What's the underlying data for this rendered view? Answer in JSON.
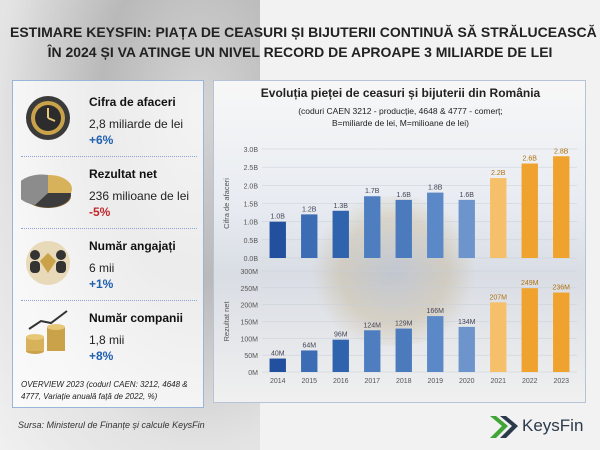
{
  "headline": {
    "line1": "ESTIMARE KEYSFIN: PIAȚA DE CEASURI ȘI BIJUTERII CONTINUĂ SĂ STRĂLUCEASCĂ",
    "line2": "ÎN 2024 ȘI VA ATINGE UN NIVEL RECORD DE APROAPE 3 MILIARDE DE LEI"
  },
  "kpis": [
    {
      "label": "Cifra de afaceri",
      "value": "2,8 miliarde de lei",
      "change": "+6%",
      "change_color": "#1f5fb0",
      "icon": "gold-watch-icon"
    },
    {
      "label": "Rezultat net",
      "value": "236 milioane de lei",
      "change": "-5%",
      "change_color": "#c0282d",
      "icon": "pie-chart-icon"
    },
    {
      "label": "Număr angajați",
      "value": "6 mii",
      "change": "+1%",
      "change_color": "#1f5fb0",
      "icon": "people-diamond-icon"
    },
    {
      "label": "Număr companii",
      "value": "1,8 mii",
      "change": "+8%",
      "change_color": "#1f5fb0",
      "icon": "coins-chart-icon"
    }
  ],
  "overview": "OVERVIEW 2023 (codurI CAEN: 3212, 4648 & 4777, Variație anuală față de 2022, %)",
  "source": "Sursa: Ministerul de Finanțe și calcule KeysFin",
  "brand": {
    "name": "KeysFin",
    "color": "#2b3a4a",
    "accent": "#3fa535"
  },
  "chart_data": {
    "title": "Evoluția pieței de ceasuri și bijuterii din România",
    "subtitle_line1": "(coduri CAEN 3212 - producție, 4648 & 4777 - comerț;",
    "subtitle_line2": "B=miliarde de lei, M=milioane de lei)",
    "categories": [
      "2014",
      "2015",
      "2016",
      "2017",
      "2018",
      "2019",
      "2020",
      "2021",
      "2022",
      "2023"
    ],
    "charts": [
      {
        "type": "bar",
        "ylabel": "Cifra de afaceri",
        "ylim": [
          0,
          3.0
        ],
        "yticks": [
          "0.0B",
          "0.5B",
          "1.0B",
          "1.5B",
          "2.0B",
          "2.5B",
          "3.0B"
        ],
        "values": [
          1.0,
          1.2,
          1.3,
          1.7,
          1.6,
          1.8,
          1.6,
          2.2,
          2.6,
          2.8
        ],
        "labels": [
          "1.0B",
          "1.2B",
          "1.3B",
          "1.7B",
          "1.6B",
          "1.8B",
          "1.6B",
          "2.2B",
          "2.6B",
          "2.8B"
        ]
      },
      {
        "type": "bar",
        "ylabel": "Rezultat net",
        "ylim": [
          0,
          300
        ],
        "yticks": [
          "0M",
          "50M",
          "100M",
          "150M",
          "200M",
          "250M",
          "300M"
        ],
        "values": [
          40,
          64,
          96,
          124,
          129,
          166,
          134,
          207,
          249,
          236
        ],
        "labels": [
          "40M",
          "64M",
          "96M",
          "124M",
          "129M",
          "166M",
          "134M",
          "207M",
          "249M",
          "236M"
        ]
      }
    ],
    "colors": {
      "blue_dark": "#2d5aa5",
      "blue_light": "#5c86c4",
      "orange": "#f0a22e",
      "orange_light": "#f6c06a"
    }
  }
}
